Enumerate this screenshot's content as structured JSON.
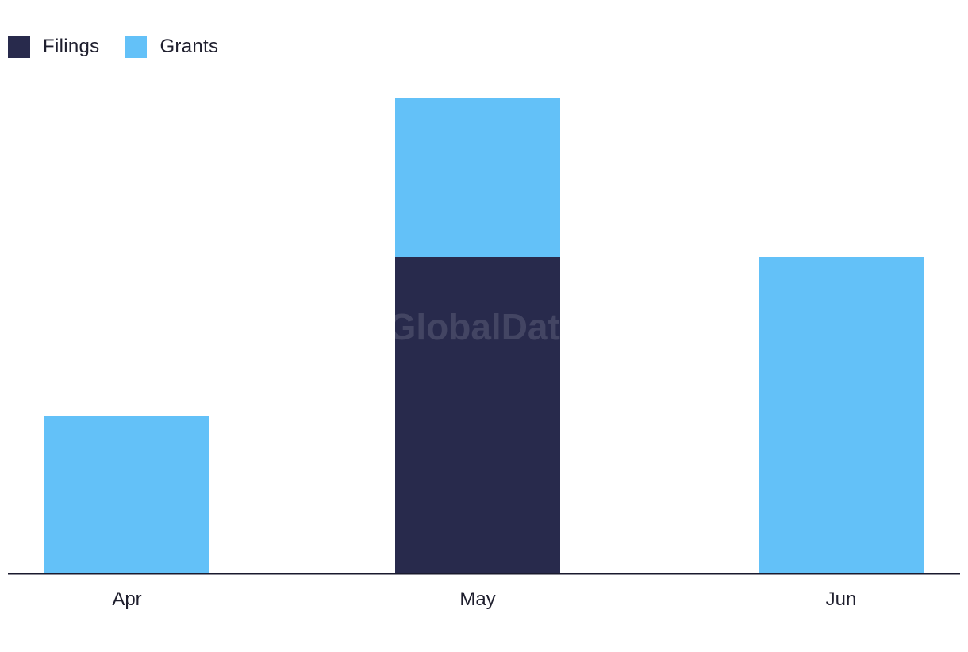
{
  "chart_data": {
    "type": "bar",
    "stacked": true,
    "categories": [
      "Apr",
      "May",
      "Jun"
    ],
    "series": [
      {
        "name": "Filings",
        "color": "#282a4c",
        "values": [
          0,
          2,
          0
        ]
      },
      {
        "name": "Grants",
        "color": "#63c1f8",
        "values": [
          1,
          1,
          2
        ]
      }
    ],
    "ylim": [
      0,
      3
    ],
    "grid": false,
    "legend_position": "top-left",
    "watermark": "GlobalData"
  }
}
